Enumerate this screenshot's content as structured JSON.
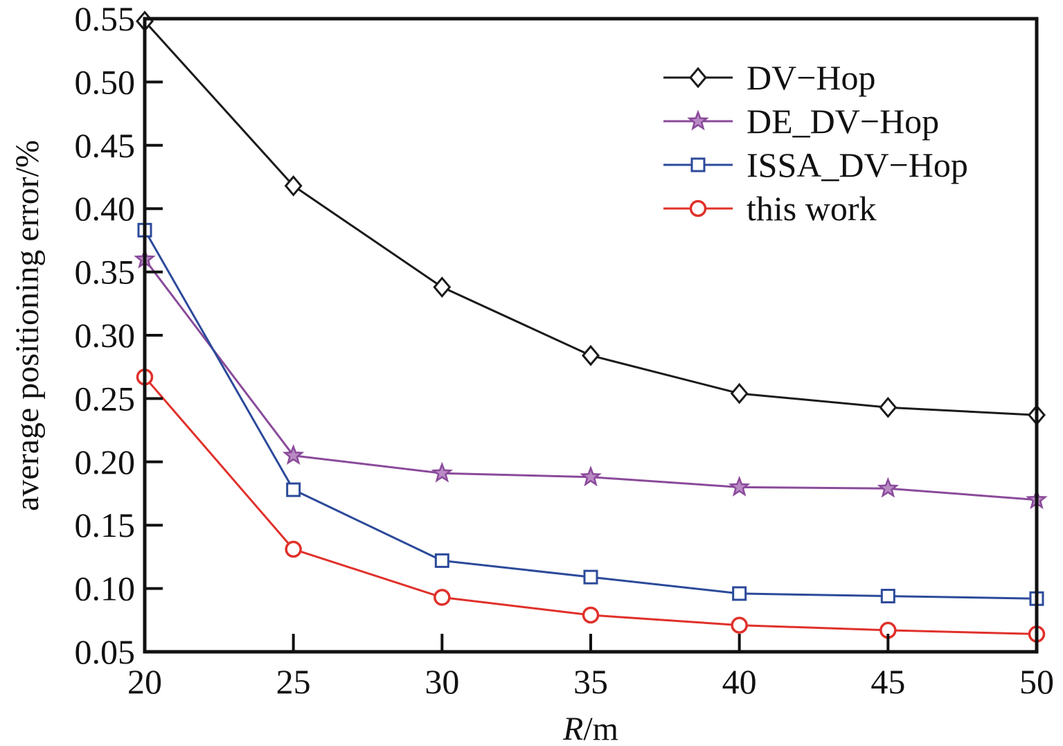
{
  "chart_data": {
    "type": "line",
    "title": "",
    "xlabel_italic": "R",
    "xlabel_rest": "/m",
    "ylabel": "average positioning error/%",
    "xlim": [
      20,
      50
    ],
    "ylim": [
      0.05,
      0.55
    ],
    "x_ticks": [
      "20",
      "25",
      "30",
      "35",
      "40",
      "45",
      "50"
    ],
    "y_ticks": [
      "0.05",
      "0.10",
      "0.15",
      "0.20",
      "0.25",
      "0.30",
      "0.35",
      "0.40",
      "0.45",
      "0.50",
      "0.55"
    ],
    "grid": false,
    "legend_position": "top-right",
    "x": [
      20,
      25,
      30,
      35,
      40,
      45,
      50
    ],
    "series": [
      {
        "name": "DV−Hop",
        "marker": "diamond",
        "color": "#1a1a1a",
        "values": [
          0.548,
          0.418,
          0.338,
          0.284,
          0.254,
          0.243,
          0.237
        ]
      },
      {
        "name": "DE_DV−Hop",
        "marker": "star",
        "color": "#8a4a9a",
        "values": [
          0.36,
          0.205,
          0.191,
          0.188,
          0.18,
          0.179,
          0.17
        ]
      },
      {
        "name": "ISSA_DV−Hop",
        "marker": "square",
        "color": "#2c4a9a",
        "values": [
          0.383,
          0.178,
          0.122,
          0.109,
          0.096,
          0.094,
          0.092
        ]
      },
      {
        "name": "this work",
        "marker": "circle",
        "color": "#e0302a",
        "values": [
          0.267,
          0.131,
          0.093,
          0.079,
          0.071,
          0.067,
          0.064
        ]
      }
    ]
  }
}
